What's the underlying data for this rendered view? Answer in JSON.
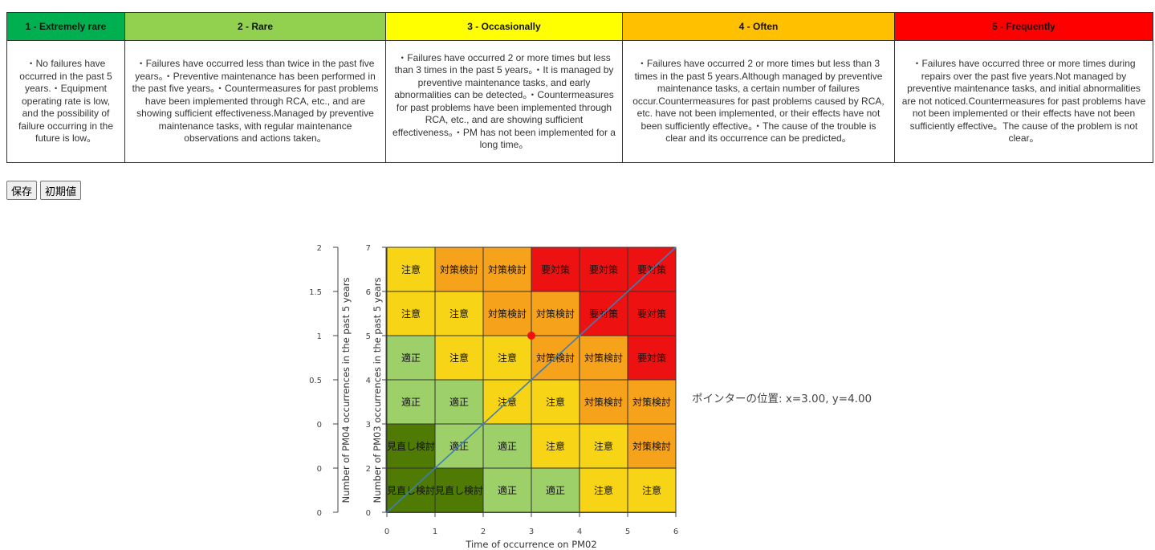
{
  "table": {
    "headers": [
      {
        "label": "1 - Extremely rare",
        "color": "#00b050"
      },
      {
        "label": "2 - Rare",
        "color": "#92d050"
      },
      {
        "label": "3 - Occasionally",
        "color": "#ffff00"
      },
      {
        "label": "4 - Often",
        "color": "#ffc000"
      },
      {
        "label": "5 - Frequently",
        "color": "#ff0000"
      }
    ],
    "descriptions": [
      "・No failures have occurred in the past 5 years.・Equipment operating rate is low, and the possibility of failure occurring in the future is low。",
      "・Failures have occurred less than twice in the past five years。・Preventive maintenance has been performed in the past five years。・Countermeasures for past problems have been implemented through RCA, etc., and are showing sufficient effectiveness.Managed by preventive maintenance tasks, with regular maintenance observations and actions taken。",
      "・Failures have occurred 2 or more times but less than 3 times in the past 5 years。・It is managed by preventive maintenance tasks, and early abnormalities can be detected。・Countermeasures for past problems have been implemented through RCA, etc., and are showing sufficient effectiveness。・PM has not been implemented for a long time。",
      "・Failures have occurred 2 or more times but less than 3 times in the past 5 years.Although managed by preventive maintenance tasks, a certain number of failures occur.Countermeasures for past problems caused by RCA, etc. have not been implemented, or their effects have not been sufficiently effective。・The cause of the trouble is clear and its occurrence can be predicted。",
      "・Failures have occurred three or more times during repairs over the past five years.Not managed by preventive maintenance tasks, and initial abnormalities are not noticed.Countermeasures for past problems have not been implemented or their effects have not been sufficiently effective。The cause of the problem is not clear。"
    ]
  },
  "buttons": {
    "save": "保存",
    "reset": "初期値"
  },
  "pointer": {
    "label": "ポインターの位置: x=3.00, y=4.00",
    "x": 3,
    "y": 4
  },
  "chart_data": {
    "type": "heatmap",
    "xlabel": "Time of occurrence on PM02",
    "ylabel": "Number of PM03 occurrences in the past 5 years",
    "ylabel2": "Number of PM04 occurrences in the past 5 years",
    "xlim": [
      0,
      6
    ],
    "ylim": [
      0,
      7
    ],
    "x_ticks": [
      "0",
      "1",
      "2",
      "3",
      "4",
      "5",
      "6"
    ],
    "y_ticks": [
      "0",
      "2",
      "3",
      "4",
      "5",
      "6",
      "7"
    ],
    "y2_ticks": [
      "0",
      "0",
      "0",
      "0.5",
      "1",
      "1.5",
      "2"
    ],
    "colors": {
      "見直し検討": "#4f7a04",
      "適正": "#9ed06a",
      "注意": "#f7d516",
      "対策検討": "#f6a21a",
      "要対策": "#ee1111"
    },
    "grid_rows_top_to_bottom": [
      [
        "注意",
        "対策検討",
        "対策検討",
        "要対策",
        "要対策",
        "要対策"
      ],
      [
        "注意",
        "注意",
        "対策検討",
        "対策検討",
        "要対策",
        "要対策"
      ],
      [
        "適正",
        "注意",
        "注意",
        "対策検討",
        "対策検討",
        "要対策"
      ],
      [
        "適正",
        "適正",
        "注意",
        "注意",
        "対策検討",
        "対策検討"
      ],
      [
        "見直し検討",
        "適正",
        "適正",
        "注意",
        "注意",
        "対策検討"
      ],
      [
        "見直し検討",
        "見直し検討",
        "適正",
        "適正",
        "注意",
        "注意"
      ]
    ],
    "line": {
      "color": "#3d7fb5",
      "x": [
        0,
        6
      ],
      "y": [
        0,
        6
      ]
    },
    "marker": {
      "color": "#ee1111",
      "x": 3,
      "y": 4
    }
  }
}
